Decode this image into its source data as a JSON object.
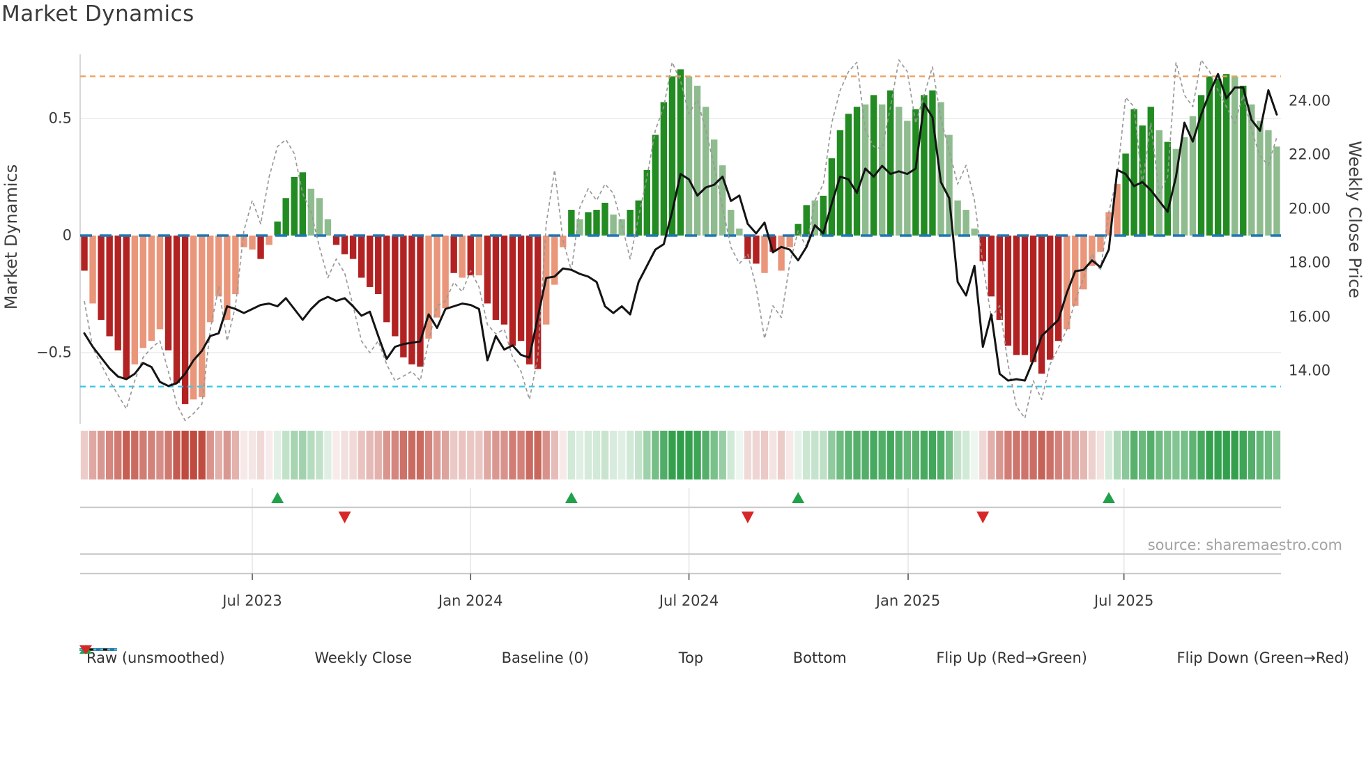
{
  "title": "Market Dynamics",
  "source_text": "source: sharemaestro.com",
  "axes": {
    "left": {
      "label": "Market Dynamics",
      "ticks": [
        "0.5",
        "0",
        "−0.5"
      ],
      "tick_values": [
        0.5,
        0,
        -0.5
      ]
    },
    "right": {
      "label": "Weekly Close Price",
      "ticks": [
        "24.00",
        "22.00",
        "20.00",
        "18.00",
        "16.00",
        "14.00"
      ],
      "tick_values": [
        24,
        22,
        20,
        18,
        16,
        14
      ]
    },
    "x": {
      "ticks": [
        "Jul 2023",
        "Jan 2024",
        "Jul 2024",
        "Jan 2025",
        "Jul 2025"
      ],
      "tick_weeks": [
        20.0,
        46.0,
        72.0,
        98.1,
        123.8
      ]
    }
  },
  "legend": [
    {
      "label": "Raw (unsmoothed)",
      "swatch": "dashed-line",
      "color": "#999999"
    },
    {
      "label": "Weekly Close",
      "swatch": "solid-line",
      "color": "#111111"
    },
    {
      "label": "Baseline (0)",
      "swatch": "dashed-bold",
      "color": "#1f77b4"
    },
    {
      "label": "Top",
      "swatch": "dotted-line",
      "color": "#f0a15e"
    },
    {
      "label": "Bottom",
      "swatch": "dotted-line",
      "color": "#3cc7e5"
    },
    {
      "label": "Flip Up (Red→Green)",
      "swatch": "triangle-up",
      "color": "#21a14a"
    },
    {
      "label": "Flip Down (Green→Red)",
      "swatch": "triangle-down",
      "color": "#d62728"
    }
  ],
  "colors": {
    "bar_strong_red": "#b22222",
    "bar_light_red": "#e9967a",
    "bar_strong_green": "#228b22",
    "bar_light_green": "#8fbc8f",
    "baseline": "#1f77b4",
    "top_line": "#f0a15e",
    "bottom_line": "#3cc7e5",
    "raw_line": "#999999",
    "close_line": "#141414",
    "flip_up": "#21a14a",
    "flip_down": "#d62728",
    "grid": "#ececec",
    "panel_line": "#cccccc",
    "heat_red": "#bf4a3f",
    "heat_green": "#2f9e4a"
  },
  "chart_data": {
    "type": "bar",
    "n_weeks": 143,
    "title": "Market Dynamics",
    "ylabel_left": "Market Dynamics",
    "ylabel_right": "Weekly Close Price",
    "osc_ylim": [
      -0.8,
      0.78
    ],
    "price_ylim": [
      13.0,
      25.5
    ],
    "baseline_value": 0,
    "top_value": 0.68,
    "bottom_value": -0.645,
    "flip_up_weeks": [
      23,
      58,
      85,
      122
    ],
    "flip_down_weeks": [
      31,
      79,
      107
    ],
    "bar_shades": "RrRRRRrrrrRRRrrrrrrrrRrGGGGgggRRRRRRRRRRRrrrRrRrRRRRRRRrrrGgGGGggGGGGGGGgggggggRRrRrrGGgGGGGGgGgGggGGGgggggRRRRRRRRRRrrrrrrrGGGGgGgggGGGGgGgggggg",
    "osc_values": [
      -0.15,
      -0.29,
      -0.36,
      -0.43,
      -0.49,
      -0.61,
      -0.55,
      -0.48,
      -0.45,
      -0.4,
      -0.49,
      -0.63,
      -0.72,
      -0.7,
      -0.69,
      -0.37,
      -0.26,
      -0.36,
      -0.25,
      -0.05,
      -0.06,
      -0.1,
      -0.04,
      0.06,
      0.16,
      0.25,
      0.27,
      0.2,
      0.16,
      0.07,
      -0.04,
      -0.08,
      -0.1,
      -0.18,
      -0.22,
      -0.25,
      -0.37,
      -0.43,
      -0.52,
      -0.55,
      -0.56,
      -0.44,
      -0.35,
      -0.31,
      -0.16,
      -0.18,
      -0.17,
      -0.17,
      -0.29,
      -0.36,
      -0.38,
      -0.47,
      -0.45,
      -0.55,
      -0.57,
      -0.38,
      -0.21,
      -0.05,
      0.11,
      0.07,
      0.1,
      0.11,
      0.14,
      0.09,
      0.07,
      0.11,
      0.15,
      0.28,
      0.43,
      0.57,
      0.68,
      0.71,
      0.68,
      0.64,
      0.55,
      0.41,
      0.3,
      0.11,
      0.03,
      -0.1,
      -0.12,
      -0.16,
      -0.07,
      -0.15,
      -0.05,
      0.05,
      0.13,
      0.15,
      0.17,
      0.33,
      0.45,
      0.52,
      0.55,
      0.56,
      0.6,
      0.56,
      0.62,
      0.55,
      0.49,
      0.54,
      0.6,
      0.62,
      0.57,
      0.43,
      0.15,
      0.11,
      0.03,
      -0.11,
      -0.26,
      -0.36,
      -0.47,
      -0.51,
      -0.51,
      -0.54,
      -0.59,
      -0.53,
      -0.45,
      -0.4,
      -0.3,
      -0.23,
      -0.13,
      -0.07,
      0.1,
      0.22,
      0.35,
      0.54,
      0.47,
      0.55,
      0.45,
      0.4,
      0.37,
      0.42,
      0.51,
      0.6,
      0.68,
      0.67,
      0.69,
      0.68,
      0.64,
      0.56,
      0.49,
      0.45,
      0.38
    ],
    "raw_values": [
      -0.28,
      -0.48,
      -0.55,
      -0.62,
      -0.68,
      -0.74,
      -0.62,
      -0.52,
      -0.48,
      -0.45,
      -0.58,
      -0.72,
      -0.79,
      -0.76,
      -0.72,
      -0.4,
      -0.22,
      -0.45,
      -0.3,
      0.02,
      0.15,
      0.05,
      0.25,
      0.38,
      0.41,
      0.35,
      0.18,
      0.1,
      -0.05,
      -0.18,
      -0.1,
      -0.16,
      -0.3,
      -0.45,
      -0.5,
      -0.45,
      -0.55,
      -0.62,
      -0.6,
      -0.58,
      -0.62,
      -0.45,
      -0.3,
      -0.28,
      -0.2,
      -0.24,
      -0.15,
      -0.22,
      -0.38,
      -0.42,
      -0.4,
      -0.52,
      -0.58,
      -0.7,
      -0.52,
      0.05,
      0.28,
      -0.02,
      -0.15,
      0.12,
      0.2,
      0.15,
      0.22,
      0.18,
      0.05,
      -0.1,
      0.08,
      0.25,
      0.45,
      0.55,
      0.74,
      0.66,
      0.52,
      0.58,
      0.45,
      0.3,
      0.12,
      -0.05,
      -0.12,
      -0.08,
      -0.22,
      -0.44,
      -0.3,
      -0.35,
      -0.12,
      0.02,
      -0.05,
      0.15,
      0.22,
      0.48,
      0.62,
      0.7,
      0.74,
      0.45,
      0.38,
      0.37,
      0.55,
      0.75,
      0.7,
      0.48,
      0.6,
      0.72,
      0.5,
      0.36,
      0.22,
      0.3,
      0.15,
      -0.12,
      -0.35,
      -0.3,
      -0.55,
      -0.73,
      -0.78,
      -0.62,
      -0.7,
      -0.55,
      -0.48,
      -0.4,
      -0.28,
      -0.18,
      -0.08,
      -0.15,
      0.1,
      0.25,
      0.59,
      0.55,
      0.22,
      0.48,
      0.18,
      0.25,
      0.74,
      0.6,
      0.55,
      0.75,
      0.7,
      0.62,
      0.55,
      0.48,
      0.6,
      0.45,
      0.34,
      0.3,
      0.42
    ],
    "price_values": [
      15.4,
      14.9,
      14.5,
      14.1,
      13.8,
      13.7,
      13.9,
      14.3,
      14.15,
      13.6,
      13.45,
      13.55,
      13.9,
      14.4,
      14.75,
      15.3,
      15.4,
      16.4,
      16.3,
      16.15,
      16.3,
      16.45,
      16.5,
      16.4,
      16.7,
      16.3,
      15.9,
      16.3,
      16.6,
      16.75,
      16.6,
      16.7,
      16.4,
      16.05,
      16.2,
      15.3,
      14.45,
      14.9,
      15.0,
      15.05,
      15.1,
      16.1,
      15.6,
      16.3,
      16.4,
      16.5,
      16.45,
      16.3,
      14.4,
      15.3,
      14.8,
      14.95,
      14.6,
      14.5,
      16.0,
      17.45,
      17.5,
      17.8,
      17.75,
      17.6,
      17.5,
      17.3,
      16.4,
      16.15,
      16.4,
      16.1,
      17.3,
      17.9,
      18.5,
      18.7,
      19.9,
      21.3,
      21.1,
      20.5,
      20.8,
      20.9,
      21.2,
      20.3,
      20.5,
      19.45,
      19.1,
      19.5,
      18.4,
      18.6,
      18.5,
      18.1,
      18.6,
      19.4,
      19.1,
      20.2,
      21.2,
      21.1,
      20.6,
      21.5,
      21.2,
      21.6,
      21.3,
      21.4,
      21.3,
      21.5,
      23.9,
      23.4,
      21.0,
      20.4,
      17.3,
      16.8,
      17.9,
      14.9,
      16.1,
      13.9,
      13.65,
      13.7,
      13.65,
      14.4,
      15.3,
      15.6,
      15.9,
      16.9,
      17.7,
      17.75,
      18.1,
      17.85,
      18.5,
      21.45,
      21.3,
      20.85,
      21.0,
      20.7,
      20.3,
      19.9,
      21.2,
      23.2,
      22.5,
      23.5,
      24.3,
      25.0,
      24.1,
      24.5,
      24.5,
      23.3,
      22.9,
      24.4,
      23.5
    ]
  }
}
